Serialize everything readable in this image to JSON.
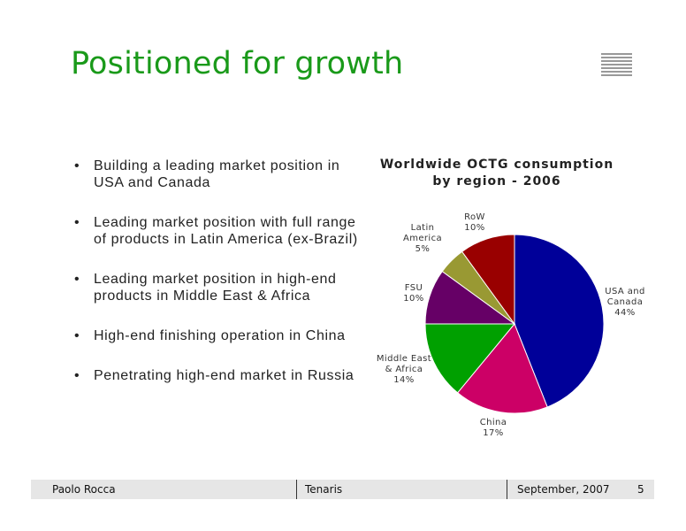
{
  "slide": {
    "title": "Positioned for growth",
    "bullets": [
      "Building a leading market position in USA and Canada",
      "Leading market position with full range of products in Latin America (ex-Brazil)",
      "Leading market position in high-end products in Middle East & Africa",
      "High-end finishing operation in China",
      "Penetrating high-end market in Russia"
    ]
  },
  "chart_data": {
    "type": "pie",
    "title": "Worldwide OCTG consumption by region - 2006",
    "title_lines": [
      "Worldwide OCTG consumption",
      "by region - 2006"
    ],
    "categories": [
      "USA and Canada",
      "China",
      "Middle East & Africa",
      "FSU",
      "Latin America",
      "RoW"
    ],
    "values": [
      44,
      17,
      14,
      10,
      5,
      10
    ],
    "labels": [
      [
        "USA and",
        "Canada",
        "44%"
      ],
      [
        "China",
        "17%"
      ],
      [
        "Middle East",
        "& Africa",
        "14%"
      ],
      [
        "FSU",
        "10%"
      ],
      [
        "Latin",
        "America",
        "5%"
      ],
      [
        "RoW",
        "10%"
      ]
    ],
    "colors": [
      "#000099",
      "#cc0066",
      "#00a000",
      "#660066",
      "#999933",
      "#990000"
    ]
  },
  "footer": {
    "presenter": "Paolo Rocca",
    "company": "Tenaris",
    "date": "September, 2007",
    "page": "5"
  }
}
